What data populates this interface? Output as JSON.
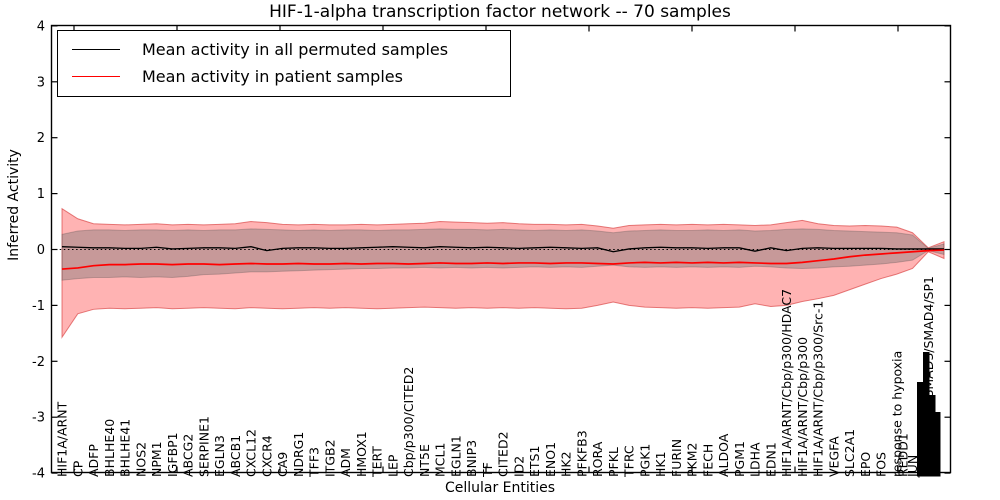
{
  "title": "HIF-1-alpha transcription factor network -- 70 samples",
  "axes": {
    "ylabel": "Inferred Activity",
    "xlabel": "Cellular Entities",
    "ytick_labels": [
      "4",
      "3",
      "2",
      "1",
      "0",
      "-1",
      "-2",
      "-3",
      "-4"
    ],
    "ytick_values": [
      4,
      3,
      2,
      1,
      0,
      -1,
      -2,
      -3,
      -4
    ]
  },
  "legend": {
    "entries": [
      {
        "label": "Mean activity in all permuted samples",
        "color": "#000000"
      },
      {
        "label": "Mean activity in patient samples",
        "color": "#ff0000"
      }
    ]
  },
  "colors": {
    "permuted_line": "#000000",
    "patient_line": "#ff0000",
    "patient_band_fill": "rgba(255,45,45,0.36)",
    "patient_band_edge": "rgba(215,60,60,0.65)",
    "permuted_band_fill": "rgba(115,115,115,0.40)",
    "permuted_band_edge": "rgba(70,70,70,0.28)",
    "zero_line": "#000000"
  },
  "chart_data": {
    "type": "line",
    "title": "HIF-1-alpha transcription factor network -- 70 samples",
    "xlabel": "Cellular Entities",
    "ylabel": "Inferred Activity",
    "ylim": [
      -4,
      4
    ],
    "grid": false,
    "legend_position": "upper left",
    "x_labels": [
      "HIF1A/ARNT",
      "CP",
      "ADFP",
      "BHLHE40",
      "BHLHE41",
      "NOS2",
      "NPM1",
      "IGFBP1",
      "ABCG2",
      "SERPINE1",
      "EGLN3",
      "ABCB1",
      "CXCL12",
      "CXCR4",
      "CA9",
      "NDRG1",
      "TFF3",
      "ITGB2",
      "ADM",
      "HMOX1",
      "TERT",
      "LEP",
      "Cbp/p300/CITED2",
      "NT5E",
      "MCL1",
      "EGLN1",
      "BNIP3",
      "TF",
      "CITED2",
      "ID2",
      "ETS1",
      "ENO1",
      "HK2",
      "PFKFB3",
      "RORA",
      "PFKL",
      "TFRC",
      "PGK1",
      "HK1",
      "FURIN",
      "PKM2",
      "FECH",
      "ALDOA",
      "PGM1",
      "LDHA",
      "EDN1",
      "HIF1A/ARNT/Cbp/p300/HDAC7",
      "HIF1A/ARNT/Cbp/p300",
      "HIF1A/ARNT/Cbp/p300/Src-1",
      "VEGFA",
      "SLC2A1",
      "EPO",
      "FOS",
      "response to hypoxia",
      "JUN",
      "HIF1A/ARNT/SMAD3/SMAD4/SP1",
      ""
    ],
    "extra_labels": [
      {
        "text": "REDD1",
        "x": 903
      }
    ],
    "xaxis_note": "rightmost labels overlap into an illegible black cluster",
    "series": [
      {
        "name": "Mean activity in all permuted samples",
        "values": [
          0.05,
          0.04,
          0.03,
          0.03,
          0.02,
          0.02,
          0.04,
          0.01,
          0.02,
          0.03,
          0.03,
          0.02,
          0.05,
          -0.02,
          0.02,
          0.03,
          0.03,
          0.02,
          0.02,
          0.03,
          0.04,
          0.05,
          0.04,
          0.03,
          0.05,
          0.04,
          0.03,
          0.04,
          0.03,
          0.02,
          0.03,
          0.04,
          0.03,
          0.02,
          0.03,
          -0.04,
          0.01,
          0.03,
          0.04,
          0.03,
          0.03,
          0.02,
          0.03,
          0.03,
          -0.03,
          0.03,
          -0.02,
          0.02,
          0.03,
          0.02,
          0.02,
          0.02,
          0.02,
          0.01,
          0.01,
          0.01,
          0.01
        ]
      },
      {
        "name": "Mean activity in patient samples",
        "values": [
          -0.35,
          -0.33,
          -0.29,
          -0.27,
          -0.27,
          -0.26,
          -0.26,
          -0.27,
          -0.26,
          -0.26,
          -0.27,
          -0.26,
          -0.25,
          -0.26,
          -0.26,
          -0.25,
          -0.26,
          -0.26,
          -0.25,
          -0.26,
          -0.25,
          -0.25,
          -0.26,
          -0.25,
          -0.24,
          -0.25,
          -0.25,
          -0.24,
          -0.25,
          -0.24,
          -0.24,
          -0.25,
          -0.24,
          -0.24,
          -0.25,
          -0.26,
          -0.24,
          -0.23,
          -0.24,
          -0.23,
          -0.24,
          -0.23,
          -0.24,
          -0.23,
          -0.24,
          -0.25,
          -0.25,
          -0.23,
          -0.2,
          -0.17,
          -0.13,
          -0.1,
          -0.08,
          -0.06,
          -0.04,
          -0.02,
          -0.01
        ]
      }
    ],
    "bands": [
      {
        "name": "patient band",
        "upper": [
          0.73,
          0.55,
          0.46,
          0.45,
          0.44,
          0.45,
          0.46,
          0.44,
          0.45,
          0.44,
          0.45,
          0.46,
          0.5,
          0.48,
          0.45,
          0.44,
          0.45,
          0.44,
          0.44,
          0.45,
          0.44,
          0.45,
          0.46,
          0.47,
          0.5,
          0.49,
          0.48,
          0.47,
          0.48,
          0.46,
          0.45,
          0.45,
          0.44,
          0.45,
          0.42,
          0.38,
          0.43,
          0.44,
          0.45,
          0.44,
          0.45,
          0.44,
          0.45,
          0.44,
          0.43,
          0.44,
          0.48,
          0.52,
          0.46,
          0.43,
          0.42,
          0.43,
          0.42,
          0.4,
          0.3,
          0.03,
          0.14
        ],
        "lower": [
          -1.57,
          -1.15,
          -1.07,
          -1.05,
          -1.06,
          -1.05,
          -1.04,
          -1.06,
          -1.05,
          -1.04,
          -1.05,
          -1.06,
          -1.04,
          -1.05,
          -1.06,
          -1.05,
          -1.04,
          -1.05,
          -1.04,
          -1.05,
          -1.06,
          -1.05,
          -1.04,
          -1.03,
          -1.04,
          -1.05,
          -1.04,
          -1.05,
          -1.04,
          -1.05,
          -1.04,
          -1.05,
          -1.06,
          -1.05,
          -1.0,
          -0.94,
          -1.0,
          -1.03,
          -1.04,
          -1.05,
          -1.04,
          -1.05,
          -1.04,
          -1.03,
          -0.97,
          -1.02,
          -1.0,
          -0.93,
          -0.88,
          -0.82,
          -0.72,
          -0.62,
          -0.52,
          -0.44,
          -0.34,
          -0.04,
          -0.16
        ]
      },
      {
        "name": "permuted band",
        "upper": [
          0.27,
          0.33,
          0.35,
          0.35,
          0.34,
          0.35,
          0.35,
          0.34,
          0.35,
          0.34,
          0.35,
          0.35,
          0.37,
          0.36,
          0.35,
          0.34,
          0.35,
          0.34,
          0.35,
          0.35,
          0.34,
          0.35,
          0.35,
          0.36,
          0.37,
          0.36,
          0.36,
          0.35,
          0.36,
          0.35,
          0.34,
          0.35,
          0.34,
          0.35,
          0.33,
          0.3,
          0.33,
          0.34,
          0.35,
          0.34,
          0.34,
          0.35,
          0.34,
          0.35,
          0.33,
          0.34,
          0.36,
          0.37,
          0.36,
          0.34,
          0.33,
          0.32,
          0.31,
          0.3,
          0.26,
          0.02,
          0.1
        ],
        "lower": [
          -0.55,
          -0.52,
          -0.5,
          -0.5,
          -0.49,
          -0.5,
          -0.49,
          -0.5,
          -0.48,
          -0.45,
          -0.44,
          -0.42,
          -0.4,
          -0.4,
          -0.39,
          -0.38,
          -0.37,
          -0.36,
          -0.35,
          -0.34,
          -0.34,
          -0.33,
          -0.33,
          -0.32,
          -0.33,
          -0.32,
          -0.33,
          -0.32,
          -0.33,
          -0.32,
          -0.31,
          -0.32,
          -0.31,
          -0.32,
          -0.3,
          -0.28,
          -0.31,
          -0.32,
          -0.31,
          -0.32,
          -0.31,
          -0.32,
          -0.31,
          -0.32,
          -0.3,
          -0.31,
          -0.33,
          -0.34,
          -0.33,
          -0.31,
          -0.3,
          -0.28,
          -0.26,
          -0.23,
          -0.19,
          -0.02,
          -0.09
        ]
      }
    ]
  }
}
